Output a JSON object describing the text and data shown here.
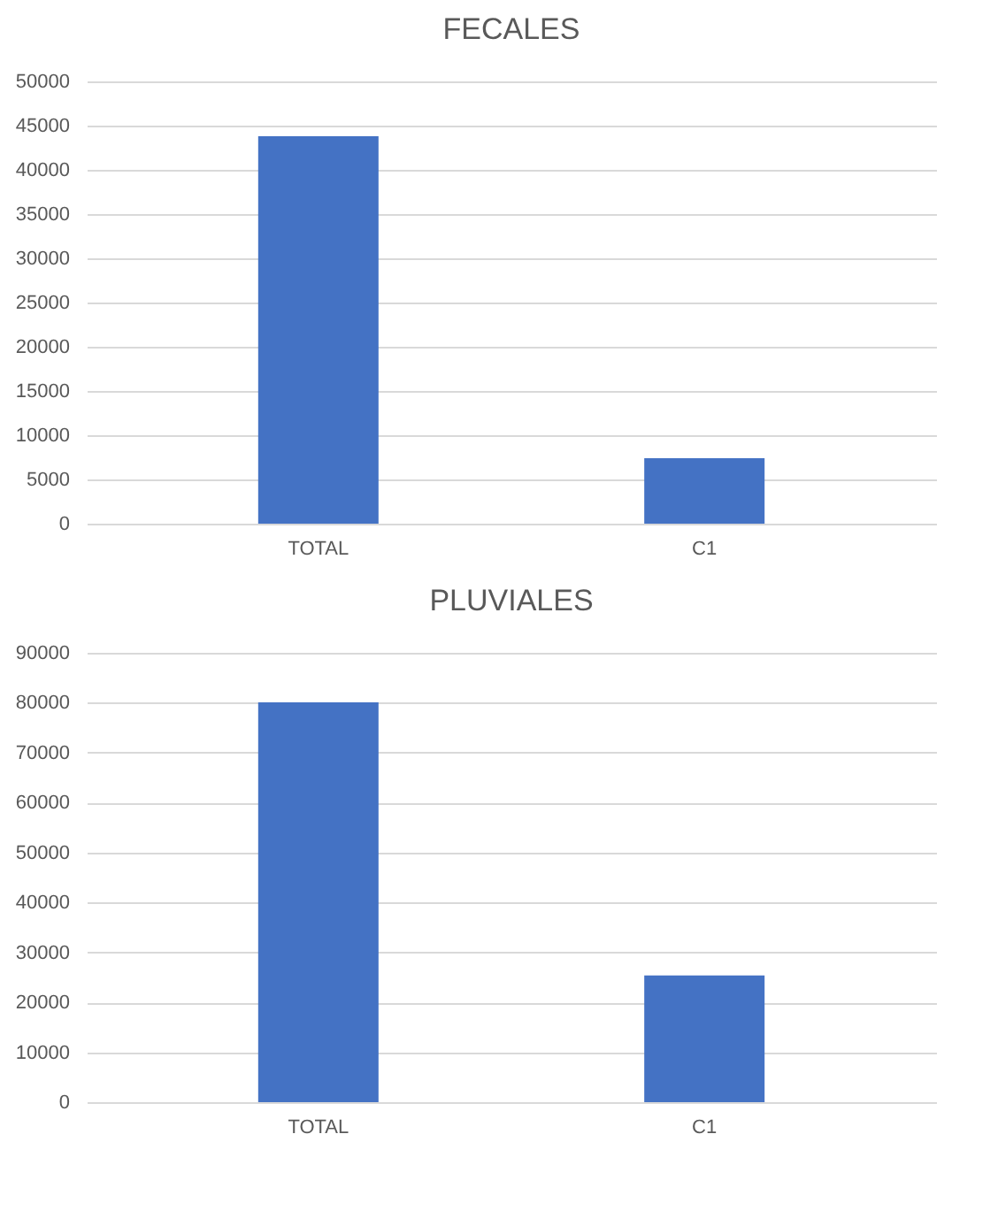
{
  "chart_data": [
    {
      "type": "bar",
      "title": "FECALES",
      "categories": [
        "TOTAL",
        "C1"
      ],
      "values": [
        43800,
        7400
      ],
      "color": "#4472c4",
      "ylim": [
        0,
        50000
      ],
      "yticks": [
        0,
        5000,
        10000,
        15000,
        20000,
        25000,
        30000,
        35000,
        40000,
        45000,
        50000
      ],
      "grid": "y"
    },
    {
      "type": "bar",
      "title": "PLUVIALES",
      "categories": [
        "TOTAL",
        "C1"
      ],
      "values": [
        80100,
        25400
      ],
      "color": "#4472c4",
      "ylim": [
        0,
        90000
      ],
      "yticks": [
        0,
        10000,
        20000,
        30000,
        40000,
        50000,
        60000,
        70000,
        80000,
        90000
      ],
      "grid": "y"
    }
  ]
}
